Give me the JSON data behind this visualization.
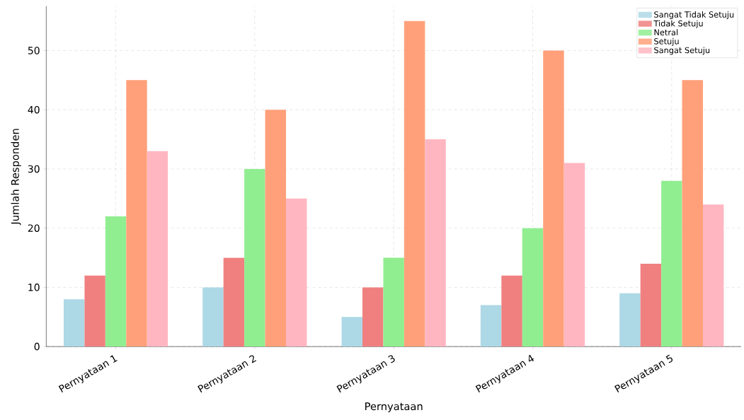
{
  "chart_data": {
    "type": "bar",
    "xlabel": "Pernyataan",
    "ylabel": "Jumlah Responden",
    "categories": [
      "Pernyataan 1",
      "Pernyataan 2",
      "Pernyataan 3",
      "Pernyataan 4",
      "Pernyataan 5"
    ],
    "series": [
      {
        "name": "Sangat Tidak Setuju",
        "color": "#add8e6",
        "values": [
          8,
          10,
          5,
          7,
          9
        ]
      },
      {
        "name": "Tidak Setuju",
        "color": "#f08080",
        "values": [
          12,
          15,
          10,
          12,
          14
        ]
      },
      {
        "name": "Netral",
        "color": "#90ee90",
        "values": [
          22,
          30,
          15,
          20,
          28
        ]
      },
      {
        "name": "Setuju",
        "color": "#ffa07a",
        "values": [
          45,
          40,
          55,
          50,
          45
        ]
      },
      {
        "name": "Sangat Setuju",
        "color": "#ffb6c1",
        "values": [
          33,
          25,
          35,
          31,
          24
        ]
      }
    ],
    "ylim": [
      0,
      57.5
    ],
    "yticks": [
      0,
      10,
      20,
      30,
      40,
      50
    ],
    "grid": true,
    "legend": "top right"
  }
}
